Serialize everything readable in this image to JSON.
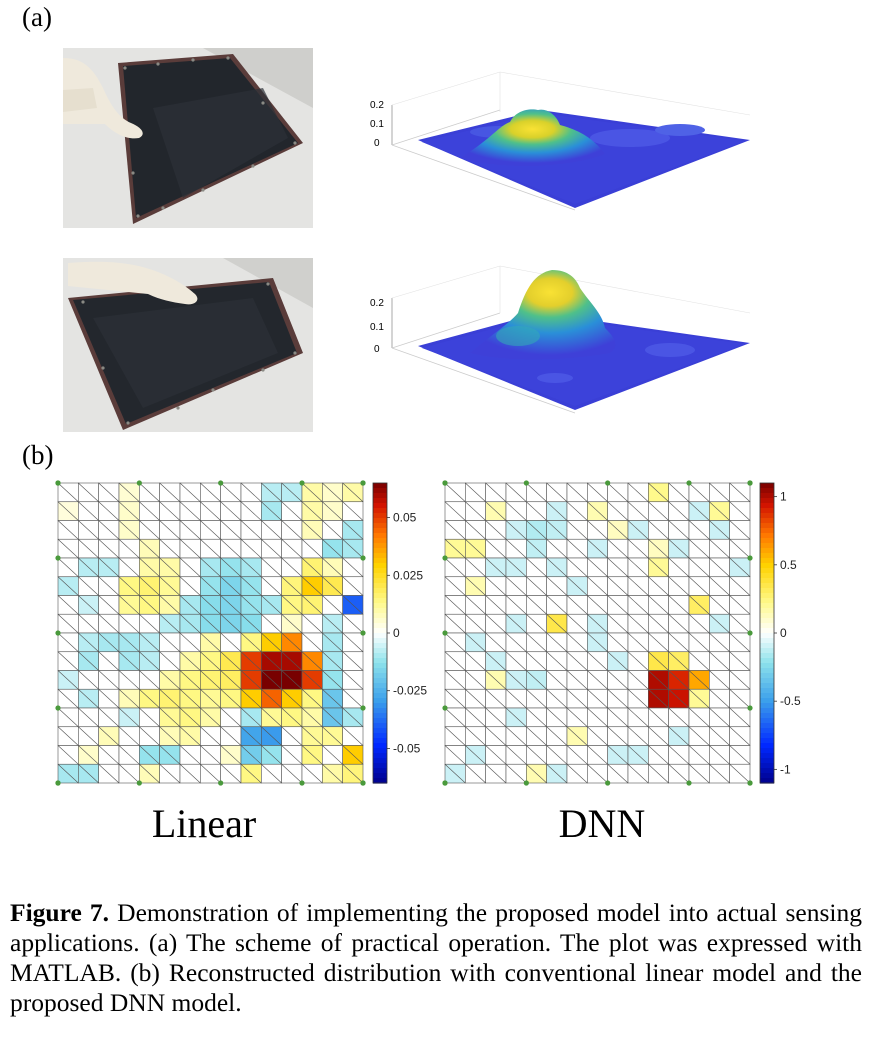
{
  "panel_a_label": "(a)",
  "panel_b_label": "(b)",
  "surface_plots": [
    {
      "z_ticks": [
        "0.2",
        "0.1",
        "0"
      ],
      "touch": "center-left"
    },
    {
      "z_ticks": [
        "0.2",
        "0.1",
        "0"
      ],
      "touch": "back-center"
    }
  ],
  "chart_data": [
    {
      "type": "heatmap",
      "title": "Linear",
      "colorbar_ticks": [
        "0.05",
        "0.025",
        "0",
        "-0.025",
        "-0.05"
      ],
      "clim": [
        -0.065,
        0.065
      ],
      "grid": [
        [
          0,
          0,
          0,
          0.005,
          0,
          0,
          0,
          0,
          0,
          0,
          -0.008,
          -0.008,
          0.01,
          0.006,
          0.01
        ],
        [
          0.004,
          0,
          0,
          0.006,
          0,
          0,
          0,
          0,
          0,
          0,
          -0.01,
          0,
          0.01,
          0.006,
          0
        ],
        [
          0,
          0,
          0,
          0.006,
          0,
          0,
          0,
          0,
          0,
          0,
          0,
          0,
          0.008,
          0,
          -0.01
        ],
        [
          0,
          0,
          0,
          0,
          0.008,
          0,
          0,
          0,
          0,
          0,
          0,
          0,
          0,
          -0.012,
          -0.01
        ],
        [
          0,
          -0.008,
          -0.008,
          0,
          0.01,
          0.01,
          0,
          -0.01,
          -0.012,
          -0.01,
          0,
          0,
          0.016,
          0.008,
          0
        ],
        [
          -0.008,
          0,
          0,
          0.014,
          0.016,
          0.012,
          0,
          -0.012,
          -0.016,
          -0.012,
          0,
          0.015,
          0.03,
          0.02,
          0
        ],
        [
          0,
          -0.006,
          0,
          0.012,
          0.014,
          0.01,
          -0.01,
          -0.014,
          -0.016,
          -0.012,
          -0.01,
          0.014,
          0.016,
          0,
          -0.04
        ],
        [
          0,
          0,
          0,
          0,
          0,
          -0.008,
          -0.01,
          -0.014,
          -0.016,
          -0.014,
          0,
          0.006,
          0,
          -0.008,
          0
        ],
        [
          0,
          -0.008,
          -0.01,
          -0.01,
          -0.008,
          0,
          0,
          0.01,
          0,
          0.014,
          0.03,
          0.04,
          0,
          -0.01,
          0
        ],
        [
          0,
          -0.01,
          0,
          -0.01,
          -0.008,
          0,
          0.01,
          0.014,
          0.02,
          0.05,
          0.06,
          0.06,
          0.04,
          -0.01,
          0
        ],
        [
          -0.006,
          0,
          0,
          0,
          0,
          0.01,
          0.014,
          0.016,
          0.018,
          0.05,
          0.065,
          0.065,
          0.05,
          -0.012,
          0
        ],
        [
          0,
          -0.008,
          0,
          0.008,
          0.014,
          0.016,
          0.014,
          0.012,
          0.014,
          0.03,
          0.045,
          0.03,
          0.014,
          -0.02,
          0
        ],
        [
          0,
          0,
          0,
          -0.006,
          0,
          0.012,
          0.014,
          0.01,
          0,
          -0.01,
          0.012,
          0.014,
          0.01,
          -0.02,
          -0.01
        ],
        [
          0,
          0,
          0.008,
          0,
          0,
          0.008,
          0.01,
          0,
          0,
          -0.028,
          -0.03,
          0,
          0.012,
          0.012,
          0
        ],
        [
          0,
          0.006,
          0,
          0,
          -0.012,
          -0.012,
          0,
          0,
          0.006,
          -0.018,
          -0.012,
          0,
          0.014,
          0,
          0.03
        ],
        [
          -0.01,
          -0.01,
          0,
          0,
          0.008,
          0,
          0,
          0,
          0,
          0.014,
          0,
          0,
          0,
          0.01,
          0.015
        ]
      ]
    },
    {
      "type": "heatmap",
      "title": "DNN",
      "colorbar_ticks": [
        "1",
        "0.5",
        "0",
        "-0.5",
        "-1"
      ],
      "clim": [
        -1.1,
        1.1
      ],
      "grid": [
        [
          0,
          0,
          0,
          0,
          0,
          0,
          0,
          0,
          0,
          0,
          0.22,
          0,
          0,
          0,
          0
        ],
        [
          0,
          0,
          0.15,
          0,
          0,
          -0.1,
          0,
          0.15,
          0,
          0,
          0,
          0,
          -0.1,
          0.2,
          0
        ],
        [
          0,
          0,
          0,
          -0.1,
          -0.15,
          -0.12,
          0,
          0,
          0.12,
          -0.1,
          0,
          0,
          0,
          -0.1,
          0
        ],
        [
          0.2,
          0.2,
          0,
          0,
          -0.12,
          0,
          0,
          -0.1,
          0,
          0,
          0.12,
          -0.1,
          0,
          0,
          0
        ],
        [
          0,
          0,
          -0.1,
          -0.1,
          0,
          -0.1,
          0,
          0,
          0,
          0,
          0.2,
          0,
          0,
          0,
          -0.1
        ],
        [
          0,
          0.15,
          0,
          0,
          0,
          0,
          -0.1,
          0,
          0,
          0,
          0,
          0,
          0,
          0,
          0
        ],
        [
          0,
          0,
          0,
          0,
          0,
          0,
          0,
          0,
          0,
          0,
          0,
          0,
          0.3,
          0,
          0
        ],
        [
          0,
          0,
          0,
          -0.1,
          0,
          0.35,
          0,
          -0.1,
          0,
          0,
          0,
          0,
          0,
          -0.1,
          0
        ],
        [
          0,
          -0.1,
          0,
          0,
          0,
          0,
          0,
          -0.1,
          0,
          0,
          0,
          0,
          0,
          0,
          0
        ],
        [
          0,
          0,
          -0.1,
          0,
          0,
          0,
          0,
          0,
          -0.1,
          0,
          0.35,
          0.3,
          0,
          0,
          0
        ],
        [
          0,
          0,
          0.15,
          -0.1,
          -0.12,
          0,
          0,
          0,
          0,
          0,
          1.0,
          0.9,
          0.6,
          0,
          0
        ],
        [
          0,
          0,
          0,
          0,
          0,
          0,
          0,
          0,
          0,
          0,
          1.0,
          0.95,
          0.2,
          0,
          0
        ],
        [
          0,
          0,
          0,
          -0.1,
          0,
          0,
          0,
          0,
          0,
          0,
          0,
          0,
          0,
          0,
          0
        ],
        [
          0,
          0,
          0,
          0,
          0,
          0,
          0.15,
          0,
          0,
          0,
          0,
          -0.1,
          0,
          0,
          0
        ],
        [
          0,
          -0.1,
          0,
          0,
          0,
          0,
          0,
          0,
          -0.1,
          -0.1,
          0,
          0,
          0,
          0,
          0
        ],
        [
          -0.1,
          0,
          0,
          0,
          0.15,
          -0.1,
          0,
          0,
          0,
          0,
          0,
          0,
          0,
          0,
          0
        ]
      ]
    }
  ],
  "caption": {
    "label": "Figure 7.",
    "text": " Demonstration of implementing the proposed model into actual sensing applications. (a) The scheme of practical operation. The plot was expressed with MATLAB. (b) Reconstructed distribution with conventional linear model and the proposed DNN model."
  }
}
